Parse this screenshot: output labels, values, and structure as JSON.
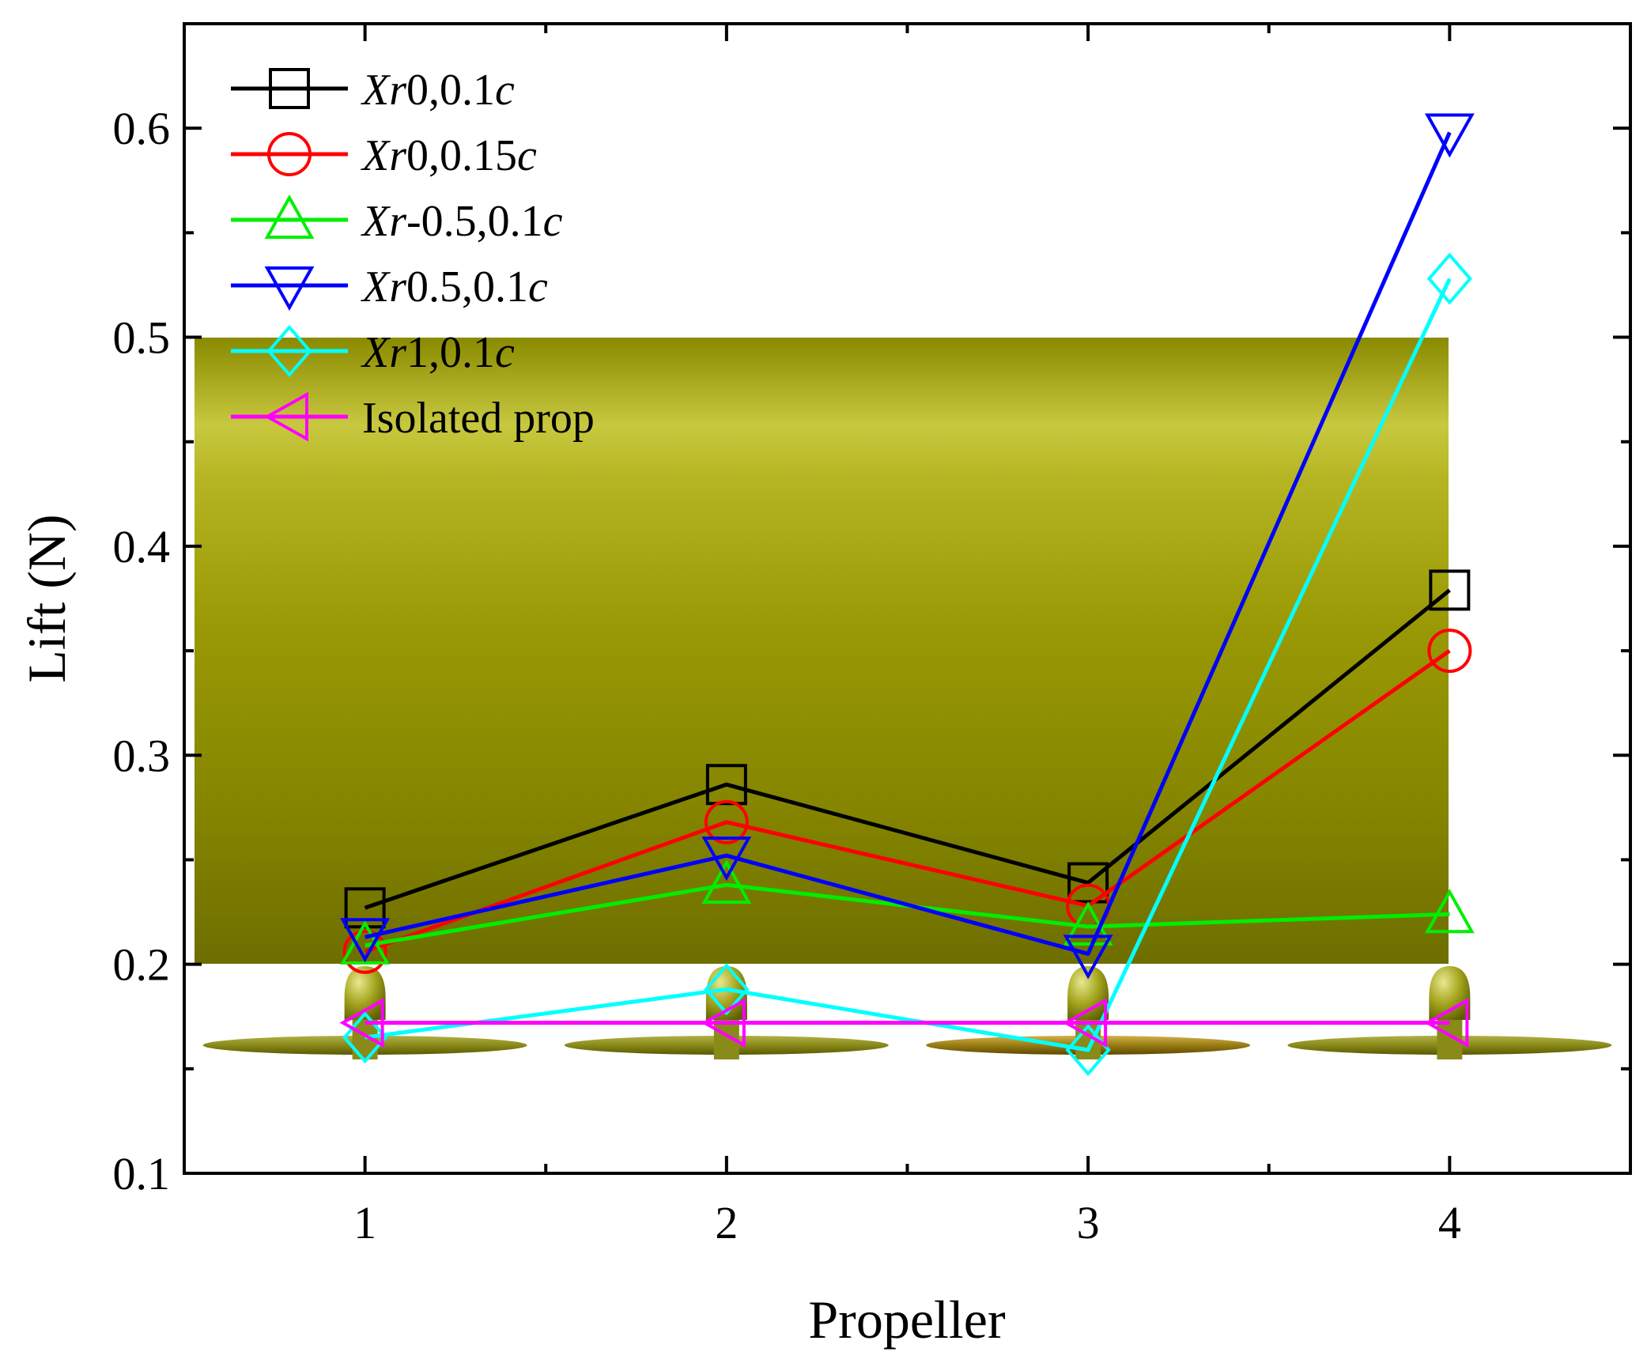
{
  "chart_data": {
    "type": "line",
    "title": "",
    "xlabel": "Propeller",
    "ylabel": "Lift (N)",
    "categories": [
      1,
      2,
      3,
      4
    ],
    "xlim": [
      0.5,
      4.5
    ],
    "ylim": [
      0.1,
      0.65
    ],
    "yticks": [
      0.1,
      0.2,
      0.3,
      0.4,
      0.5,
      0.6
    ],
    "yticks_minor": [
      0.15,
      0.25,
      0.35,
      0.45,
      0.55
    ],
    "xticks": [
      1,
      2,
      3,
      4
    ],
    "xticks_minor": [
      1.5,
      2.5,
      3.5
    ],
    "ytick_labels": [
      "0.1",
      "0.2",
      "0.3",
      "0.4",
      "0.5",
      "0.6"
    ],
    "xtick_labels": [
      "1",
      "2",
      "3",
      "4"
    ],
    "legend_position": "top-left",
    "grid": false,
    "background_illustration": "wing section with four propellers (yellow-olive)",
    "series": [
      {
        "name": "Xr0,0.1c",
        "label_italic": "Xr",
        "label_rest": "0,0.1",
        "label_tail": "c",
        "color": "#000000",
        "marker": "square",
        "values": [
          0.227,
          0.286,
          0.239,
          0.379
        ]
      },
      {
        "name": "Xr0,0.15c",
        "label_italic": "Xr",
        "label_rest": "0,0.15",
        "label_tail": "c",
        "color": "#ff0000",
        "marker": "circle",
        "values": [
          0.206,
          0.268,
          0.228,
          0.35
        ]
      },
      {
        "name": "Xr-0.5,0.1c",
        "label_italic": "Xr",
        "label_rest": "-0.5,0.1",
        "label_tail": "c",
        "color": "#00ee00",
        "marker": "triangle-up",
        "values": [
          0.209,
          0.238,
          0.218,
          0.224
        ]
      },
      {
        "name": "Xr0.5,0.1c",
        "label_italic": "Xr",
        "label_rest": "0.5,0.1",
        "label_tail": "c",
        "color": "#0000ff",
        "marker": "triangle-down",
        "values": [
          0.213,
          0.252,
          0.205,
          0.598
        ]
      },
      {
        "name": "Xr1,0.1c",
        "label_italic": "Xr",
        "label_rest": "1,0.1",
        "label_tail": "c",
        "color": "#00ffff",
        "marker": "diamond",
        "values": [
          0.165,
          0.188,
          0.159,
          0.528
        ]
      },
      {
        "name": "Isolated prop",
        "label_italic": "",
        "label_rest": "Isolated prop",
        "label_tail": "",
        "color": "#ff00ff",
        "marker": "triangle-left",
        "values": [
          0.172,
          0.172,
          0.172,
          0.172
        ]
      }
    ]
  }
}
